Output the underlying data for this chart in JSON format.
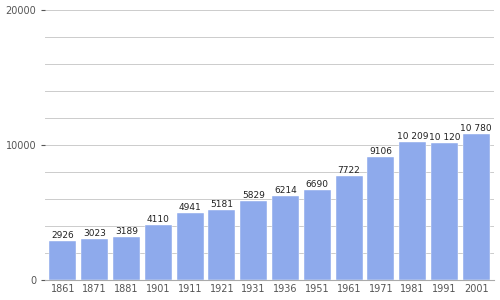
{
  "years": [
    "1861",
    "1871",
    "1881",
    "1901",
    "1911",
    "1921",
    "1931",
    "1936",
    "1951",
    "1961",
    "1971",
    "1981",
    "1991",
    "2001"
  ],
  "values": [
    2926,
    3023,
    3189,
    4110,
    4941,
    5181,
    5829,
    6214,
    6690,
    7722,
    9106,
    10209,
    10120,
    10780
  ],
  "bar_color": "#8eaaec",
  "bar_edge_color": "#ffffff",
  "background_color": "#ffffff",
  "ylim": [
    0,
    20000
  ],
  "ytick_labels": [
    "0",
    "10000",
    "20000"
  ],
  "ytick_vals": [
    0,
    10000,
    20000
  ],
  "ygrid_ticks": [
    0,
    2000,
    4000,
    6000,
    8000,
    10000,
    12000,
    14000,
    16000,
    18000,
    20000
  ],
  "grid_color": "#cccccc",
  "label_fontsize": 7.0,
  "value_label_fontsize": 6.5,
  "tick_label_color": "#555555"
}
